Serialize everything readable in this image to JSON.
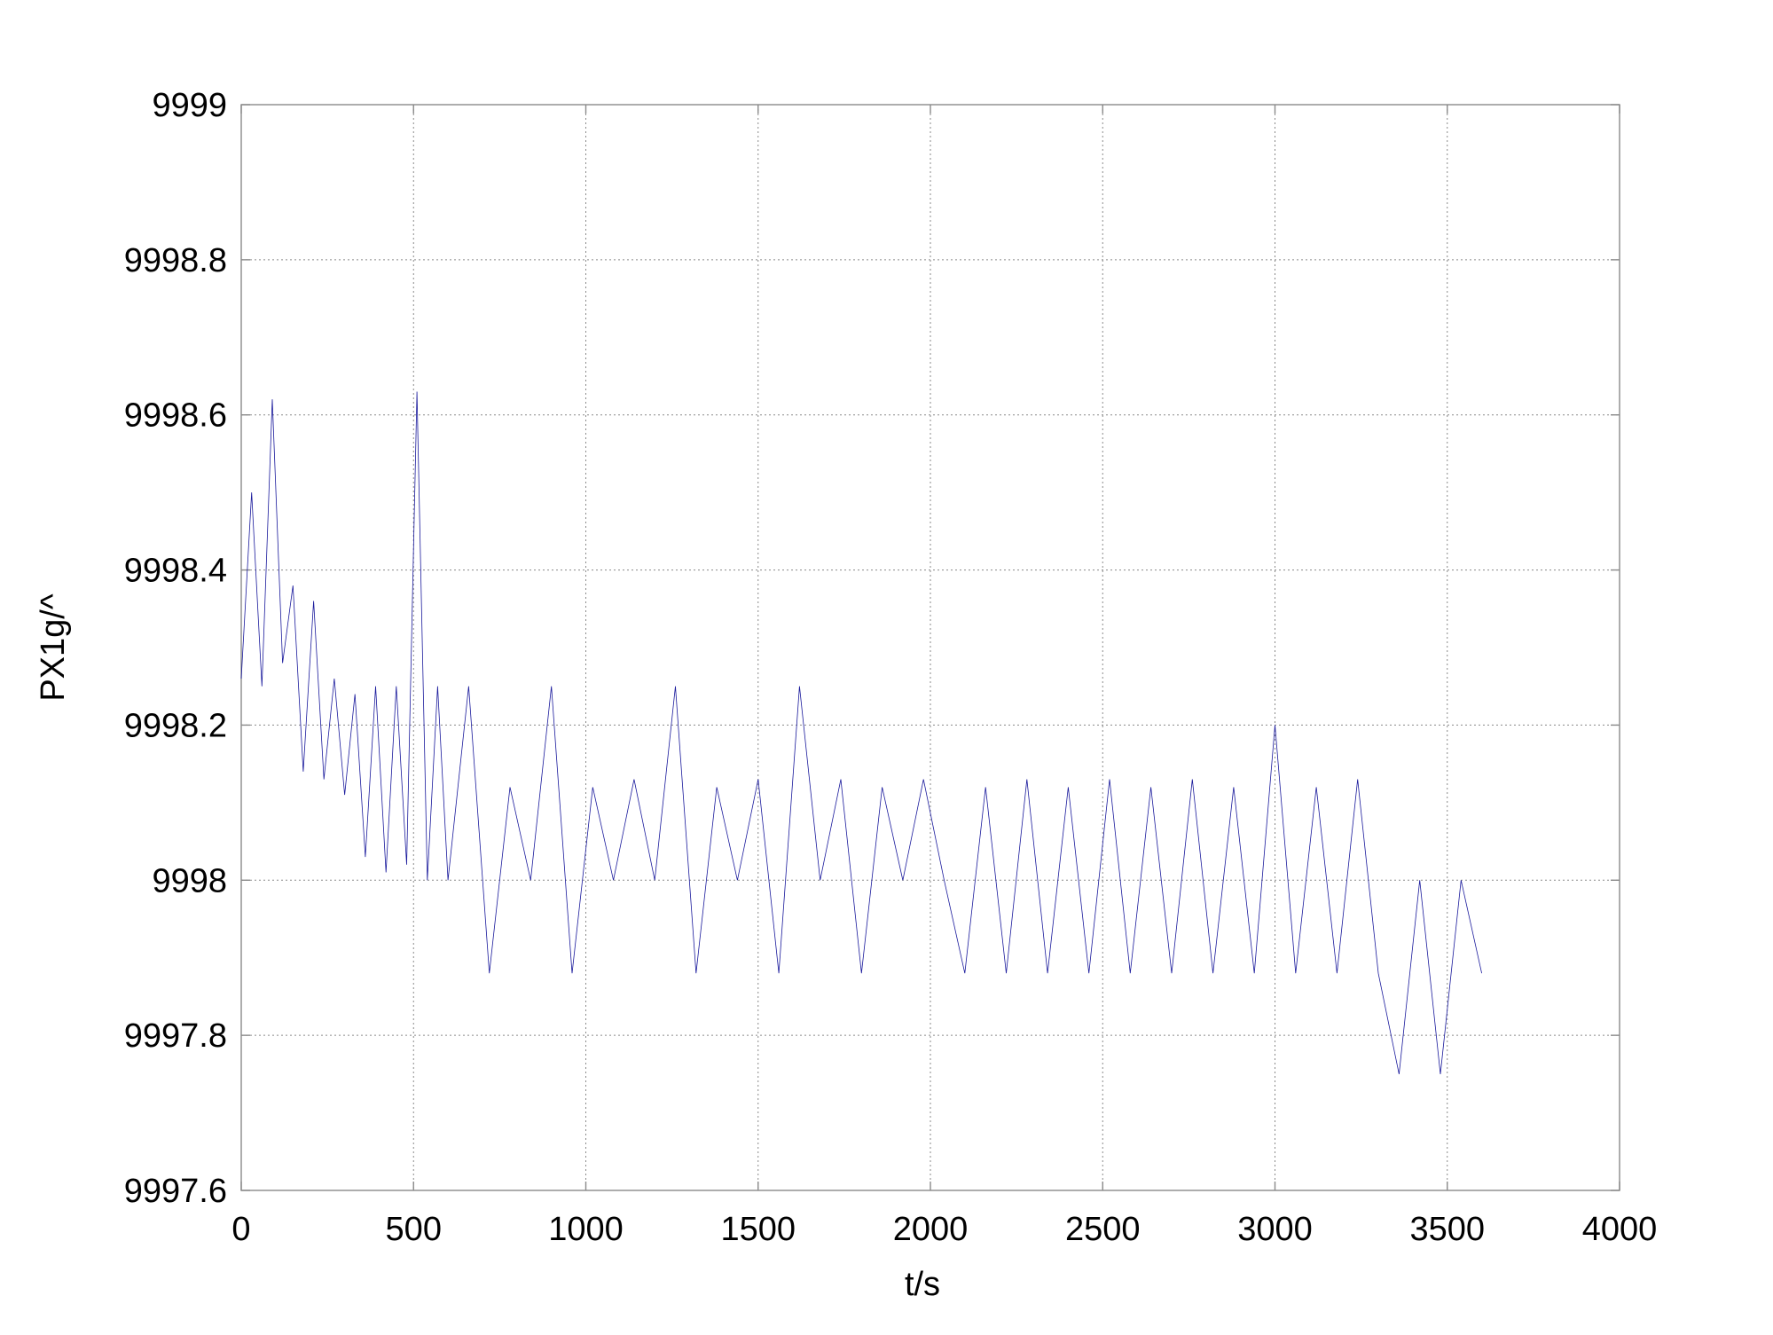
{
  "chart_data": {
    "type": "line",
    "title": "",
    "xlabel": "t/s",
    "ylabel": "PX1g/^",
    "xlim": [
      0,
      4000
    ],
    "ylim": [
      9997.6,
      9999
    ],
    "x_ticks": [
      0,
      500,
      1000,
      1500,
      2000,
      2500,
      3000,
      3500,
      4000
    ],
    "x_tick_labels": [
      "0",
      "500",
      "1000",
      "1500",
      "2000",
      "2500",
      "3000",
      "3500",
      "4000"
    ],
    "y_ticks": [
      9997.6,
      9997.8,
      9998,
      9998.2,
      9998.4,
      9998.6,
      9998.8,
      9999
    ],
    "y_tick_labels": [
      "9997.6",
      "9997.8",
      "9998",
      "9998.2",
      "9998.4",
      "9998.6",
      "9998.8",
      "9999"
    ],
    "grid": true,
    "legend": "none",
    "series": [
      {
        "color": "#1a1a9c",
        "x": [
          0,
          30,
          60,
          90,
          120,
          150,
          180,
          210,
          240,
          270,
          300,
          330,
          360,
          390,
          420,
          450,
          480,
          510,
          540,
          570,
          600,
          660,
          720,
          780,
          840,
          900,
          960,
          1020,
          1080,
          1140,
          1200,
          1260,
          1320,
          1380,
          1440,
          1500,
          1560,
          1620,
          1680,
          1740,
          1800,
          1860,
          1920,
          1980,
          2040,
          2100,
          2160,
          2220,
          2280,
          2340,
          2400,
          2460,
          2520,
          2580,
          2640,
          2700,
          2760,
          2820,
          2880,
          2940,
          3000,
          3060,
          3120,
          3180,
          3240,
          3300,
          3360,
          3420,
          3480,
          3540,
          3600
        ],
        "y": [
          9998.26,
          9998.5,
          9998.25,
          9998.62,
          9998.28,
          9998.38,
          9998.14,
          9998.36,
          9998.13,
          9998.26,
          9998.11,
          9998.24,
          9998.03,
          9998.25,
          9998.01,
          9998.25,
          9998.02,
          9998.63,
          9998.0,
          9998.25,
          9998.0,
          9998.25,
          9997.88,
          9998.12,
          9998.0,
          9998.25,
          9997.88,
          9998.12,
          9998.0,
          9998.13,
          9998.0,
          9998.25,
          9997.88,
          9998.12,
          9998.0,
          9998.13,
          9997.88,
          9998.25,
          9998.0,
          9998.13,
          9997.88,
          9998.12,
          9998.0,
          9998.13,
          9998.0,
          9997.88,
          9998.12,
          9997.88,
          9998.13,
          9997.88,
          9998.12,
          9997.88,
          9998.13,
          9997.88,
          9998.12,
          9997.88,
          9998.13,
          9997.88,
          9998.12,
          9997.88,
          9998.2,
          9997.88,
          9998.12,
          9997.88,
          9998.13,
          9997.88,
          9997.75,
          9998.0,
          9997.75,
          9998.0,
          9997.88
        ]
      }
    ]
  }
}
